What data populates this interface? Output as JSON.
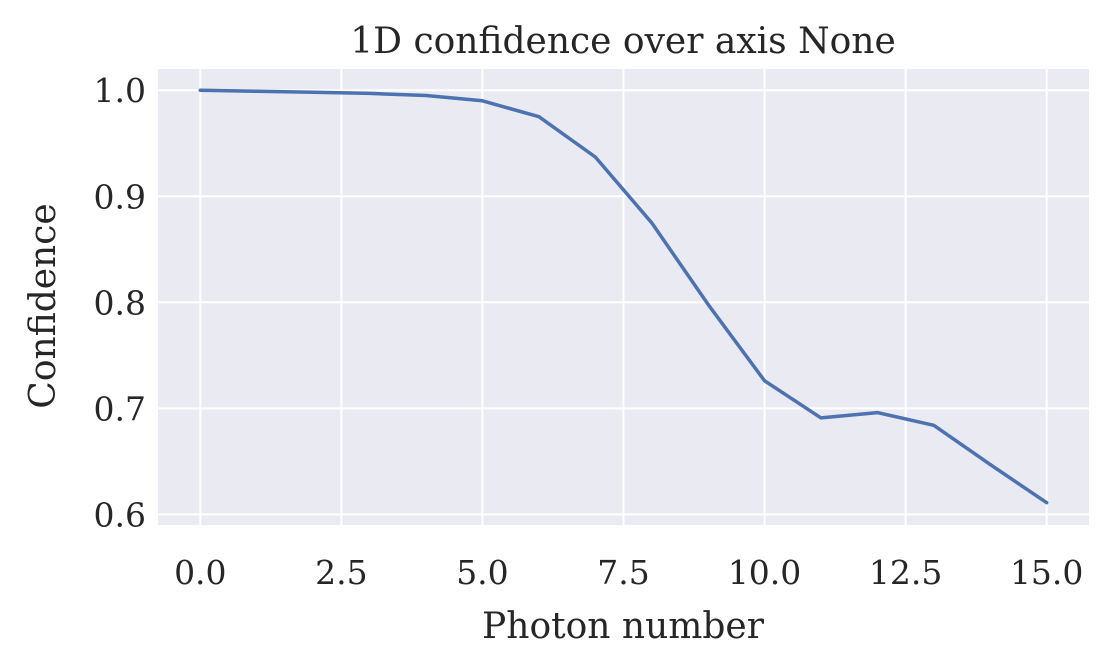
{
  "chart_data": {
    "type": "line",
    "title": "1D confidence over axis None",
    "xlabel": "Photon number",
    "ylabel": "Confidence",
    "xlim": [
      -0.75,
      15.75
    ],
    "ylim": [
      0.59,
      1.02
    ],
    "xticks": [
      0.0,
      2.5,
      5.0,
      7.5,
      10.0,
      12.5,
      15.0
    ],
    "xtick_labels": [
      "0.0",
      "2.5",
      "5.0",
      "7.5",
      "10.0",
      "12.5",
      "15.0"
    ],
    "yticks": [
      0.6,
      0.7,
      0.8,
      0.9,
      1.0
    ],
    "ytick_labels": [
      "0.6",
      "0.7",
      "0.8",
      "0.9",
      "1.0"
    ],
    "grid": true,
    "colors": {
      "background": "#eaeaf2",
      "grid": "#ffffff",
      "series": "#4c72b0"
    },
    "series": [
      {
        "x": [
          0,
          1,
          2,
          3,
          4,
          5,
          6,
          7,
          8,
          9,
          10,
          11,
          12,
          13,
          14,
          15
        ],
        "values": [
          1.0,
          0.999,
          0.998,
          0.997,
          0.995,
          0.99,
          0.975,
          0.937,
          0.875,
          0.798,
          0.726,
          0.691,
          0.696,
          0.684,
          0.647,
          0.611
        ]
      }
    ]
  }
}
